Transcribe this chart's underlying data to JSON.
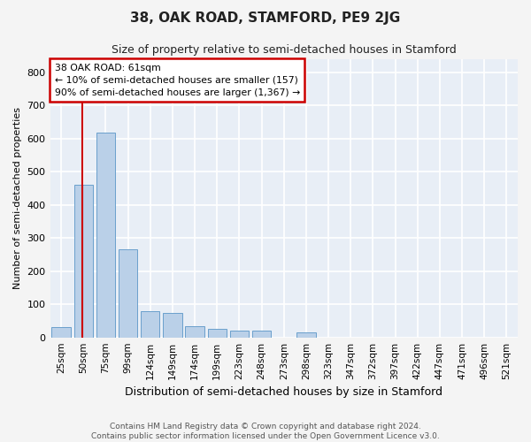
{
  "title": "38, OAK ROAD, STAMFORD, PE9 2JG",
  "subtitle": "Size of property relative to semi-detached houses in Stamford",
  "xlabel": "Distribution of semi-detached houses by size in Stamford",
  "ylabel": "Number of semi-detached properties",
  "bar_color": "#bad0e8",
  "bar_edge_color": "#6aa0cc",
  "background_color": "#e8eef6",
  "grid_color": "#ffffff",
  "annotation_box_color": "#cc0000",
  "subject_line_color": "#cc0000",
  "subject_value": 61,
  "annotation_text_line1": "38 OAK ROAD: 61sqm",
  "annotation_text_line2": "← 10% of semi-detached houses are smaller (157)",
  "annotation_text_line3": "90% of semi-detached houses are larger (1,367) →",
  "footer_line1": "Contains HM Land Registry data © Crown copyright and database right 2024.",
  "footer_line2": "Contains public sector information licensed under the Open Government Licence v3.0.",
  "categories": [
    "25sqm",
    "50sqm",
    "75sqm",
    "99sqm",
    "124sqm",
    "149sqm",
    "174sqm",
    "199sqm",
    "223sqm",
    "248sqm",
    "273sqm",
    "298sqm",
    "323sqm",
    "347sqm",
    "372sqm",
    "397sqm",
    "422sqm",
    "447sqm",
    "471sqm",
    "496sqm",
    "521sqm"
  ],
  "values": [
    30,
    462,
    618,
    265,
    80,
    75,
    35,
    25,
    20,
    20,
    0,
    14,
    0,
    0,
    0,
    0,
    0,
    0,
    0,
    0,
    0
  ],
  "ylim": [
    0,
    840
  ],
  "yticks": [
    0,
    100,
    200,
    300,
    400,
    500,
    600,
    700,
    800
  ],
  "fig_width": 6.0,
  "fig_height": 5.0,
  "fig_bg": "#f4f4f4"
}
